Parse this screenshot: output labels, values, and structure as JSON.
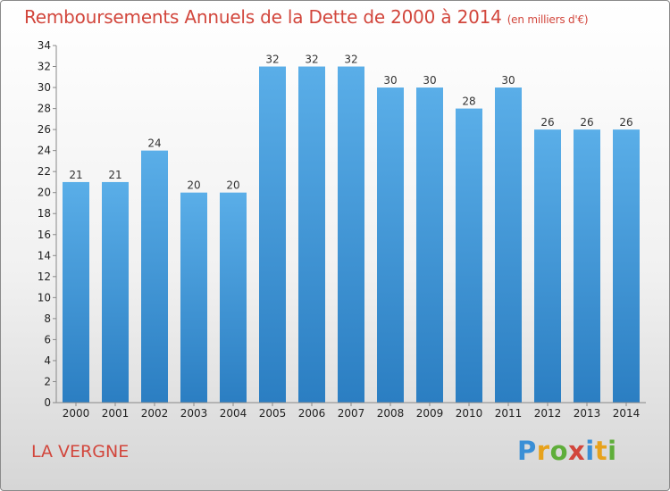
{
  "header": {
    "title": "Remboursements Annuels de la Dette de 2000 à 2014",
    "unit": "(en milliers d'€)"
  },
  "footer": {
    "commune": "LA VERGNE",
    "logo": "Proxiti"
  },
  "colors": {
    "bar_light": "#5aaee8",
    "bar_dark": "#2b7ec2",
    "title": "#d2463c"
  },
  "chart_data": {
    "type": "bar",
    "title": "Remboursements Annuels de la Dette de 2000 à 2014",
    "ylabel": "(en milliers d'€)",
    "xlabel": "",
    "categories": [
      "2000",
      "2001",
      "2002",
      "2003",
      "2004",
      "2005",
      "2006",
      "2007",
      "2008",
      "2009",
      "2010",
      "2011",
      "2012",
      "2013",
      "2014"
    ],
    "values": [
      21,
      21,
      24,
      20,
      20,
      32,
      32,
      32,
      30,
      30,
      28,
      30,
      26,
      26,
      26
    ],
    "ylim": [
      0,
      34
    ],
    "yticks": [
      0,
      2,
      4,
      6,
      8,
      10,
      12,
      14,
      16,
      18,
      20,
      22,
      24,
      26,
      28,
      30,
      32,
      34
    ],
    "grid": false,
    "legend": "none"
  }
}
